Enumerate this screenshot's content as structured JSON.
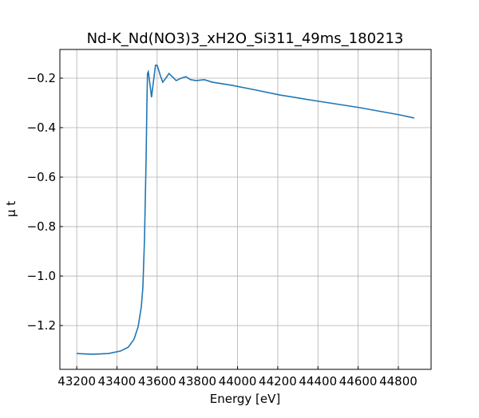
{
  "chart_data": {
    "type": "line",
    "title": "Nd-K_Nd(NO3)3_xH2O_Si311_49ms_180213",
    "xlabel": "Energy [eV]",
    "ylabel": "μ t",
    "x": [
      43200,
      43279,
      43358,
      43418,
      43457,
      43485,
      43505,
      43521,
      43529,
      43537,
      43545,
      43549,
      43552,
      43556,
      43564,
      43572,
      43580,
      43592,
      43600,
      43616,
      43628,
      43643,
      43659,
      43675,
      43695,
      43719,
      43743,
      43766,
      43794,
      43834,
      43873,
      43972,
      44091,
      44210,
      44408,
      44606,
      44804,
      44879
    ],
    "series": [
      {
        "color": "#1f77b4",
        "values": [
          -1.313,
          -1.316,
          -1.313,
          -1.303,
          -1.287,
          -1.255,
          -1.206,
          -1.126,
          -1.045,
          -0.852,
          -0.529,
          -0.303,
          -0.181,
          -0.174,
          -0.223,
          -0.277,
          -0.223,
          -0.148,
          -0.148,
          -0.19,
          -0.216,
          -0.2,
          -0.181,
          -0.194,
          -0.21,
          -0.2,
          -0.194,
          -0.206,
          -0.21,
          -0.206,
          -0.216,
          -0.229,
          -0.248,
          -0.268,
          -0.294,
          -0.319,
          -0.348,
          -0.361
        ]
      }
    ],
    "xlim": [
      43116,
      44963
    ],
    "xticks": [
      43200,
      43400,
      43600,
      43800,
      44000,
      44200,
      44400,
      44600,
      44800
    ],
    "ylim": [
      -1.377,
      -0.084
    ],
    "yticks": [
      {
        "value": -1.2,
        "label": "−1.2"
      },
      {
        "value": -1.0,
        "label": "−1.0"
      },
      {
        "value": -0.8,
        "label": "−0.8"
      },
      {
        "value": -0.6,
        "label": "−0.6"
      },
      {
        "value": -0.4,
        "label": "−0.4"
      },
      {
        "value": -0.2,
        "label": "−0.2"
      }
    ],
    "grid": true
  }
}
